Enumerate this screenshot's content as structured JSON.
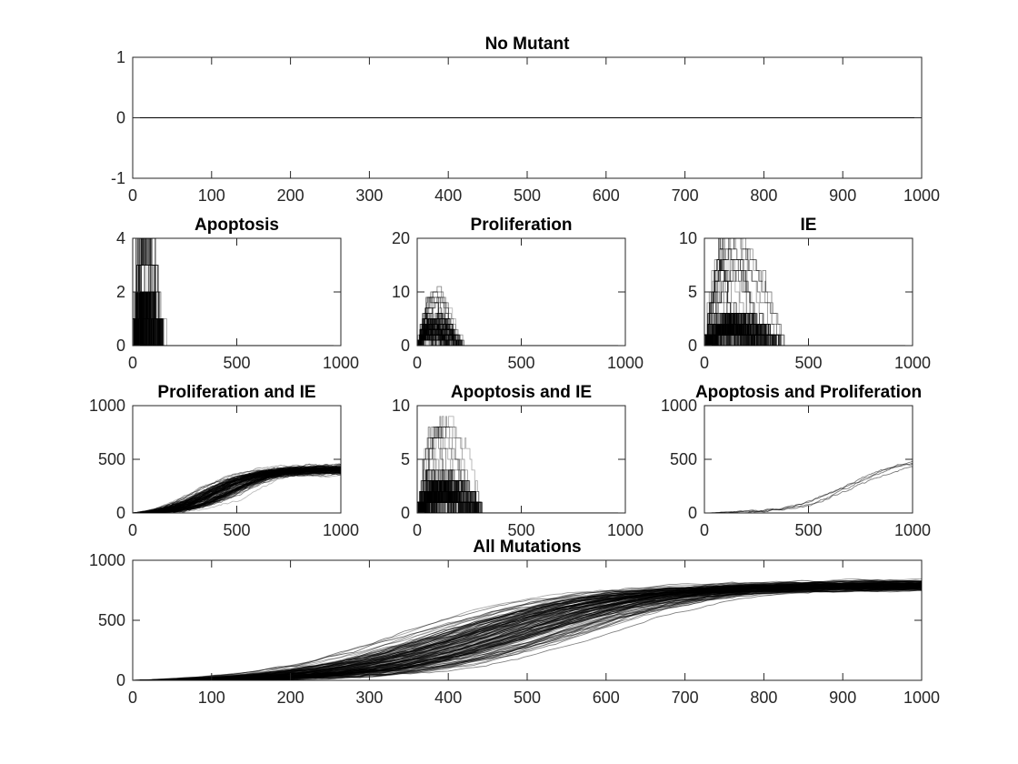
{
  "chart_data": [
    {
      "type": "line",
      "title": "No Mutant",
      "xlim": [
        0,
        1000
      ],
      "ylim": [
        -1,
        1
      ],
      "xticks": [
        "0",
        "100",
        "200",
        "300",
        "400",
        "500",
        "600",
        "700",
        "800",
        "900",
        "1000"
      ],
      "yticks": [
        "-1",
        "0",
        "1"
      ],
      "traces": "stochastic",
      "model": {
        "kind": "constant",
        "value": 0
      },
      "series_count": 1
    },
    {
      "type": "line",
      "title": "Apoptosis",
      "xlim": [
        0,
        1000
      ],
      "ylim": [
        0,
        4
      ],
      "xticks": [
        "0",
        "500",
        "1000"
      ],
      "yticks": [
        "0",
        "2",
        "4"
      ],
      "model": {
        "kind": "burst",
        "tmax": 150,
        "peak": 5,
        "typical": 1.5
      },
      "series_count": 120
    },
    {
      "type": "line",
      "title": "Proliferation",
      "xlim": [
        0,
        1000
      ],
      "ylim": [
        0,
        20
      ],
      "xticks": [
        "0",
        "500",
        "1000"
      ],
      "yticks": [
        "0",
        "10",
        "20"
      ],
      "model": {
        "kind": "burst",
        "tmax": 220,
        "peak": 11,
        "typical": 4
      },
      "series_count": 120
    },
    {
      "type": "line",
      "title": "IE",
      "xlim": [
        0,
        1000
      ],
      "ylim": [
        0,
        10
      ],
      "xticks": [
        "0",
        "500",
        "1000"
      ],
      "yticks": [
        "0",
        "5",
        "10"
      ],
      "model": {
        "kind": "burst",
        "tmax": 380,
        "peak": 11,
        "typical": 2
      },
      "series_count": 120
    },
    {
      "type": "line",
      "title": "Proliferation and IE",
      "xlim": [
        0,
        1000
      ],
      "ylim": [
        0,
        1000
      ],
      "xticks": [
        "0",
        "500",
        "1000"
      ],
      "yticks": [
        "0",
        "500",
        "1000"
      ],
      "model": {
        "kind": "logistic",
        "plateau": 420,
        "midpoint": 430,
        "width": 110,
        "spread_mid": 90,
        "plateau_spread": 50
      },
      "series_count": 120
    },
    {
      "type": "line",
      "title": "Apoptosis and IE",
      "xlim": [
        0,
        1000
      ],
      "ylim": [
        0,
        10
      ],
      "xticks": [
        "0",
        "500",
        "1000"
      ],
      "yticks": [
        "0",
        "5",
        "10"
      ],
      "model": {
        "kind": "burst",
        "tmax": 320,
        "peak": 9,
        "typical": 2.5
      },
      "series_count": 120
    },
    {
      "type": "line",
      "title": "Apoptosis and Proliferation",
      "xlim": [
        0,
        1000
      ],
      "ylim": [
        0,
        1000
      ],
      "xticks": [
        "0",
        "500",
        "1000"
      ],
      "yticks": [
        "0",
        "500",
        "1000"
      ],
      "model": {
        "kind": "logistic",
        "plateau": 520,
        "midpoint": 720,
        "width": 140,
        "spread_mid": 40,
        "plateau_spread": 40
      },
      "series_count": 4
    },
    {
      "type": "line",
      "title": "All Mutations",
      "xlim": [
        0,
        1000
      ],
      "ylim": [
        0,
        1000
      ],
      "xticks": [
        "0",
        "100",
        "200",
        "300",
        "400",
        "500",
        "600",
        "700",
        "800",
        "900",
        "1000"
      ],
      "yticks": [
        "0",
        "500",
        "1000"
      ],
      "model": {
        "kind": "logistic",
        "plateau": 800,
        "midpoint": 460,
        "width": 95,
        "spread_mid": 80,
        "plateau_spread": 50
      },
      "series_count": 140
    }
  ]
}
